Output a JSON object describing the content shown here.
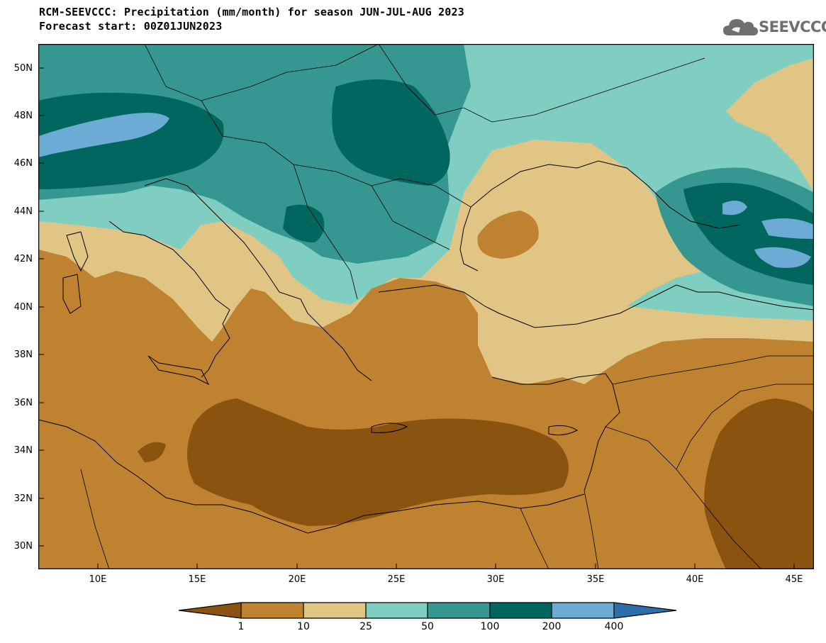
{
  "header": {
    "line1": "RCM-SEEVCCC: Precipitation (mm/month) for season JUN-JUL-AUG 2023",
    "line2": "Forecast start: 00Z01JUN2023"
  },
  "logo": {
    "text": "SEEVCCC",
    "icon": "cloud-icon",
    "color": "#6f6f6f"
  },
  "map": {
    "projection": "lat-lon",
    "lat_range": [
      29,
      51
    ],
    "lon_range": [
      7,
      46
    ],
    "lat_ticks": [
      "50N",
      "48N",
      "46N",
      "44N",
      "42N",
      "40N",
      "38N",
      "36N",
      "34N",
      "32N",
      "30N"
    ],
    "lon_ticks": [
      "10E",
      "15E",
      "20E",
      "25E",
      "30E",
      "35E",
      "40E",
      "45E"
    ],
    "palette": [
      "#8b5310",
      "#bf8230",
      "#e1c585",
      "#80cec1",
      "#35978f",
      "#01665e",
      "#6babd4",
      "#2e6fab"
    ]
  },
  "colorbar": {
    "labels": [
      "1",
      "10",
      "25",
      "50",
      "100",
      "200",
      "400"
    ],
    "colors": [
      "#8b5310",
      "#bf8230",
      "#e1c585",
      "#80cec1",
      "#35978f",
      "#01665e",
      "#6babd4",
      "#2e6fab"
    ]
  }
}
